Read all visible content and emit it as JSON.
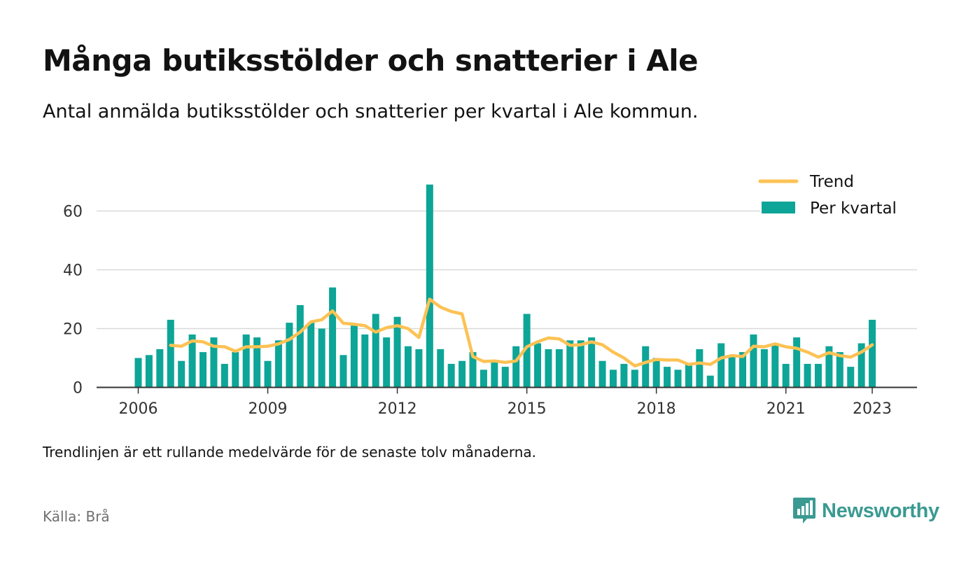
{
  "title": "Många butiksstölder och snatterier i Ale",
  "subtitle": "Antal anmälda butiksstölder och snatterier per kvartal i Ale kommun.",
  "note": "Trendlinjen är ett rullande medelvärde för de senaste tolv månaderna.",
  "source": "Källa: Brå",
  "brand": "Newsworthy",
  "colors": {
    "bar": "#0da597",
    "trend": "#fcc254",
    "grid": "#d9d9d9",
    "axis": "#333333"
  },
  "chart_data": {
    "type": "bar",
    "title": "Många butiksstölder och snatterier i Ale",
    "ylim": [
      0,
      70
    ],
    "yticks": [
      "0",
      "20",
      "40",
      "60"
    ],
    "xticks": [
      "2006",
      "2009",
      "2012",
      "2015",
      "2018",
      "2021",
      "2023"
    ],
    "grid": true,
    "legend": "top-right",
    "categories": [
      "2006 Q1",
      "2006 Q2",
      "2006 Q3",
      "2006 Q4",
      "2007 Q1",
      "2007 Q2",
      "2007 Q3",
      "2007 Q4",
      "2008 Q1",
      "2008 Q2",
      "2008 Q3",
      "2008 Q4",
      "2009 Q1",
      "2009 Q2",
      "2009 Q3",
      "2009 Q4",
      "2010 Q1",
      "2010 Q2",
      "2010 Q3",
      "2010 Q4",
      "2011 Q1",
      "2011 Q2",
      "2011 Q3",
      "2011 Q4",
      "2012 Q1",
      "2012 Q2",
      "2012 Q3",
      "2012 Q4",
      "2013 Q1",
      "2013 Q2",
      "2013 Q3",
      "2013 Q4",
      "2014 Q1",
      "2014 Q2",
      "2014 Q3",
      "2014 Q4",
      "2015 Q1",
      "2015 Q2",
      "2015 Q3",
      "2015 Q4",
      "2016 Q1",
      "2016 Q2",
      "2016 Q3",
      "2016 Q4",
      "2017 Q1",
      "2017 Q2",
      "2017 Q3",
      "2017 Q4",
      "2018 Q1",
      "2018 Q2",
      "2018 Q3",
      "2018 Q4",
      "2019 Q1",
      "2019 Q2",
      "2019 Q3",
      "2019 Q4",
      "2020 Q1",
      "2020 Q2",
      "2020 Q3",
      "2020 Q4",
      "2021 Q1",
      "2021 Q2",
      "2021 Q3",
      "2021 Q4",
      "2022 Q1",
      "2022 Q2",
      "2022 Q3",
      "2022 Q4",
      "2023 Q1"
    ],
    "series": [
      {
        "name": "Per kvartal",
        "type": "bar",
        "values": [
          10,
          11,
          13,
          23,
          9,
          18,
          12,
          17,
          8,
          12,
          18,
          17,
          9,
          16,
          22,
          28,
          22,
          20,
          34,
          11,
          21,
          18,
          25,
          17,
          24,
          14,
          13,
          69,
          13,
          8,
          9,
          12,
          6,
          9,
          7,
          14,
          25,
          15,
          13,
          13,
          16,
          16,
          17,
          9,
          6,
          8,
          6,
          14,
          10,
          7,
          6,
          8,
          13,
          4,
          15,
          11,
          12,
          18,
          13,
          15,
          8,
          17,
          8,
          8,
          14,
          12,
          7,
          15,
          23
        ]
      },
      {
        "name": "Trend",
        "type": "line",
        "values": [
          null,
          null,
          null,
          14.3,
          14.0,
          15.8,
          15.5,
          14.0,
          13.8,
          12.3,
          13.8,
          13.8,
          14.0,
          14.8,
          16.3,
          18.8,
          22.3,
          23.0,
          26.0,
          21.8,
          21.5,
          21.0,
          18.8,
          20.3,
          21.0,
          20.0,
          17.0,
          30.0,
          27.3,
          25.8,
          25.0,
          10.5,
          8.8,
          9.0,
          8.5,
          9.0,
          13.8,
          15.5,
          16.8,
          16.5,
          14.3,
          14.5,
          15.5,
          14.5,
          12.0,
          10.0,
          7.3,
          8.5,
          9.5,
          9.3,
          9.3,
          7.8,
          8.3,
          7.8,
          10.0,
          10.8,
          10.5,
          14.0,
          13.8,
          14.8,
          13.8,
          13.3,
          12.0,
          10.3,
          11.8,
          10.8,
          10.3,
          12.0,
          14.5
        ]
      }
    ]
  }
}
